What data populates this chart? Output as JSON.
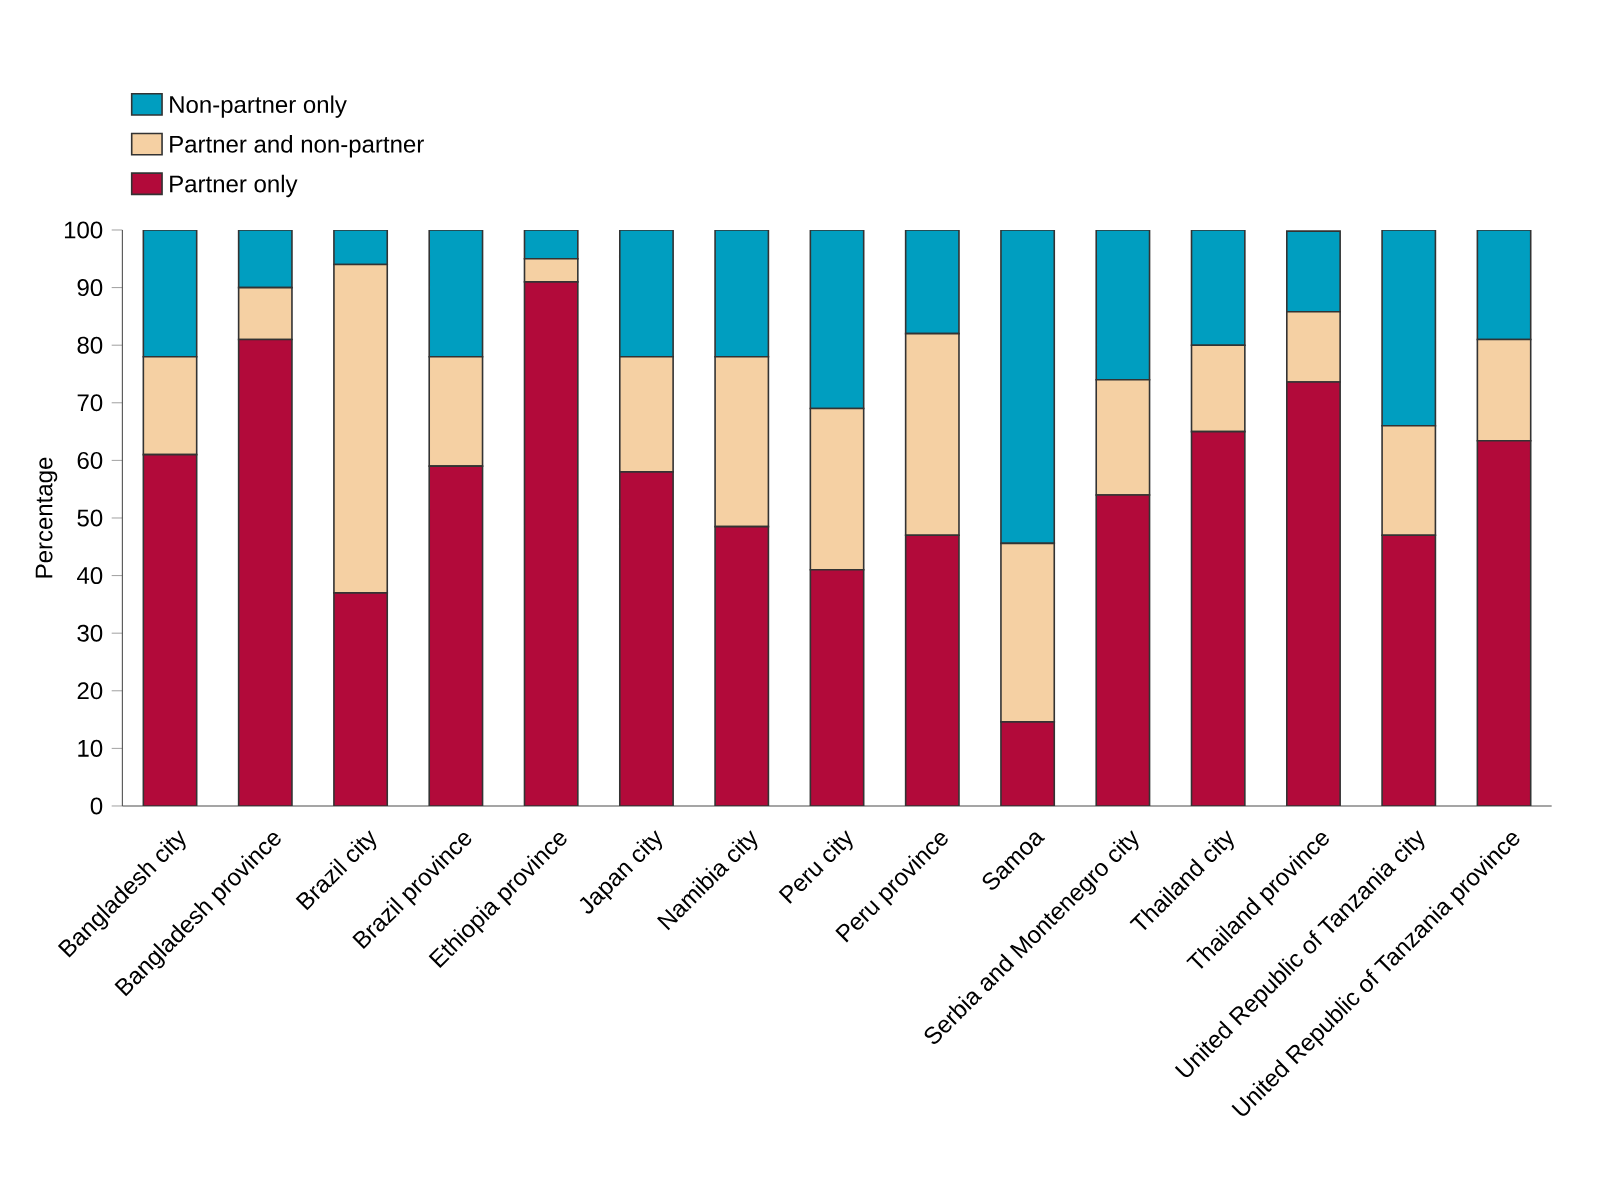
{
  "chart_data": {
    "type": "bar",
    "stacked": true,
    "ylabel": "Percentage",
    "categories": [
      "Bangladesh city",
      "Bangladesh province",
      "Brazil city",
      "Brazil province",
      "Ethiopia province",
      "Japan city",
      "Namibia city",
      "Peru city",
      "Peru province",
      "Samoa",
      "Serbia and Montenegro city",
      "Thailand city",
      "Thailand province",
      "United Republic of Tanzania city",
      "United Republic of Tanzania province"
    ],
    "series": [
      {
        "name": "Partner only",
        "color": "#b20a3a",
        "values": [
          61,
          81,
          37,
          59,
          91,
          58,
          48.5,
          41,
          47,
          14.6,
          54,
          65,
          73.6,
          47,
          63.4
        ]
      },
      {
        "name": "Partner and non-partner",
        "color": "#f5d0a3",
        "values": [
          17,
          9,
          57,
          19,
          4,
          20,
          29.5,
          28,
          35,
          31,
          20,
          15,
          12.2,
          19,
          17.6
        ]
      },
      {
        "name": "Non-partner only",
        "color": "#009ec0",
        "values": [
          22,
          10,
          6,
          22,
          5,
          22,
          22,
          31,
          18,
          54.4,
          26,
          20,
          14,
          34,
          19
        ]
      }
    ],
    "ylim": [
      0,
      100
    ],
    "yticks": [
      0,
      10,
      20,
      30,
      40,
      50,
      60,
      70,
      80,
      90,
      100
    ],
    "legend": "top left",
    "grid": false
  }
}
